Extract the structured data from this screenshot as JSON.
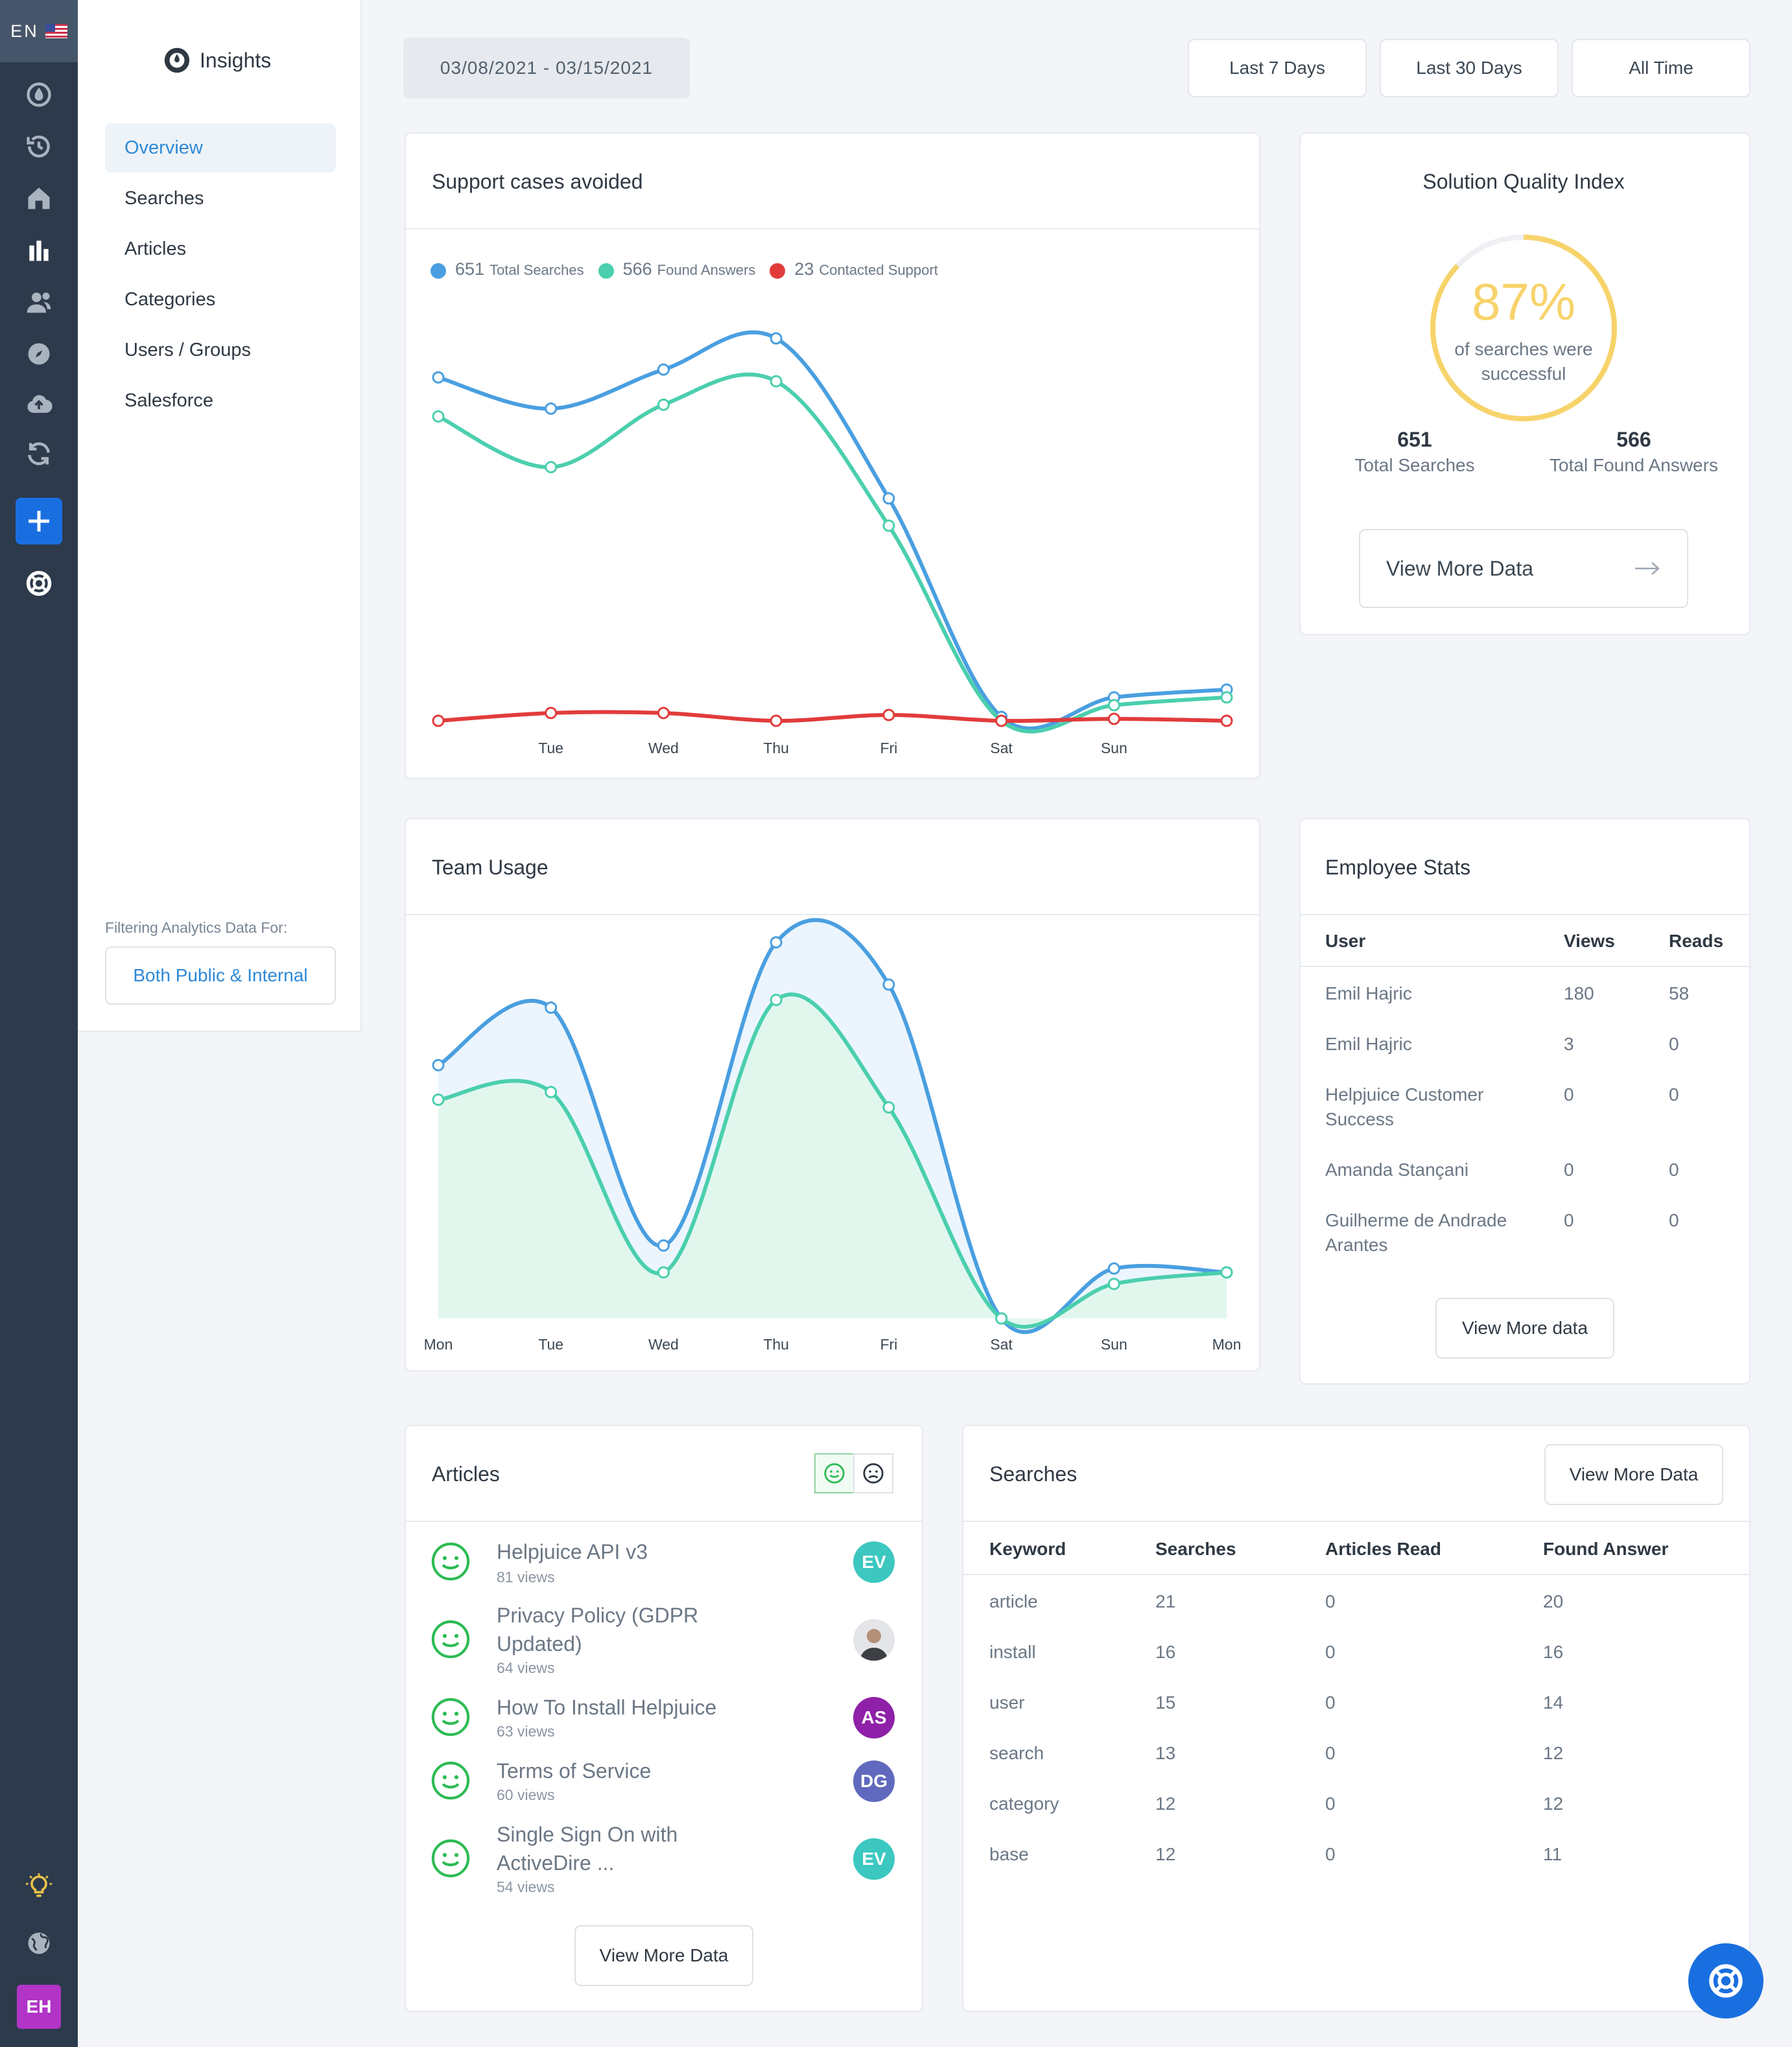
{
  "lang": "EN",
  "brand": {
    "name": "Insights"
  },
  "nav": {
    "items": [
      "Overview",
      "Searches",
      "Articles",
      "Categories",
      "Users / Groups",
      "Salesforce"
    ],
    "filter_label": "Filtering Analytics Data For:",
    "filter_value": "Both Public & Internal"
  },
  "rail_icons": [
    "droplet-icon",
    "history-icon",
    "home-icon",
    "bar-chart-icon",
    "users-icon",
    "compass-icon",
    "cloud-upload-icon",
    "sync-icon",
    "plus-icon",
    "lifebuoy-icon",
    "lightbulb-icon",
    "globe-icon"
  ],
  "user_initials": "EH",
  "toolbar": {
    "date_range": "03/08/2021 - 03/15/2021",
    "ranges": [
      "Last 7 Days",
      "Last 30 Days",
      "All Time"
    ]
  },
  "support_cases": {
    "title": "Support cases avoided",
    "legend": [
      {
        "num": "651",
        "label": "Total Searches",
        "color": "#4a9fe0"
      },
      {
        "num": "566",
        "label": "Found Answers",
        "color": "#4bcfae"
      },
      {
        "num": "23",
        "label": "Contacted Support",
        "color": "#e23b3b"
      }
    ]
  },
  "sqi": {
    "title": "Solution Quality Index",
    "percent_label": "87%",
    "percent": 87,
    "subtitle": "of searches were successful",
    "stats": [
      {
        "num": "651",
        "label": "Total Searches"
      },
      {
        "num": "566",
        "label": "Total Found Answers"
      }
    ],
    "button": "View More Data"
  },
  "team_usage": {
    "title": "Team Usage"
  },
  "chart_data": [
    {
      "type": "line",
      "title": "Support cases avoided",
      "x": [
        "",
        "Tue",
        "Wed",
        "Thu",
        "Fri",
        "Sat",
        "Sun",
        ""
      ],
      "ylim": [
        0,
        100
      ],
      "series": [
        {
          "name": "Total Searches",
          "color": "#4a9fe0",
          "values": [
            88,
            80,
            90,
            98,
            57,
            1,
            6,
            8
          ]
        },
        {
          "name": "Found Answers",
          "color": "#4bcfae",
          "values": [
            78,
            65,
            81,
            87,
            50,
            0,
            4,
            6
          ]
        },
        {
          "name": "Contacted Support",
          "color": "#e23b3b",
          "values": [
            0,
            2,
            2,
            0,
            1.5,
            0,
            0.5,
            0
          ]
        }
      ]
    },
    {
      "type": "area",
      "title": "Team Usage",
      "x": [
        "Mon",
        "Tue",
        "Wed",
        "Thu",
        "Fri",
        "Sat",
        "Sun",
        "Mon"
      ],
      "ylim": [
        0,
        100
      ],
      "series": [
        {
          "color": "#4a9fe0",
          "values": [
            66,
            81,
            19,
            98,
            87,
            0,
            13,
            12
          ]
        },
        {
          "color": "#4bcfae",
          "values": [
            57,
            59,
            12,
            83,
            55,
            0,
            9,
            12
          ]
        }
      ]
    }
  ],
  "employee_stats": {
    "title": "Employee Stats",
    "columns": [
      "User",
      "Views",
      "Reads"
    ],
    "rows": [
      [
        "Emil Hajric",
        "180",
        "58"
      ],
      [
        "Emil Hajric",
        "3",
        "0"
      ],
      [
        "Helpjuice Customer Success",
        "0",
        "0"
      ],
      [
        "Amanda Stançani",
        "0",
        "0"
      ],
      [
        "Guilherme de Andrade Arantes",
        "0",
        "0"
      ]
    ],
    "button": "View More data"
  },
  "articles": {
    "title": "Articles",
    "items": [
      {
        "title": "Helpjuice API v3",
        "views": "81 views",
        "badge": "EV",
        "badge_color": "#3cc7c0"
      },
      {
        "title": "Privacy Policy (GDPR Updated)",
        "views": "64 views",
        "badge": "",
        "badge_color": "#c9cdd2"
      },
      {
        "title": "How To Install Helpjuice",
        "views": "63 views",
        "badge": "AS",
        "badge_color": "#8e21a8"
      },
      {
        "title": "Terms of Service",
        "views": "60 views",
        "badge": "DG",
        "badge_color": "#6069bd"
      },
      {
        "title": "Single Sign On with ActiveDire ...",
        "views": "54 views",
        "badge": "EV",
        "badge_color": "#3cc7c0"
      }
    ],
    "button": "View More Data"
  },
  "searches": {
    "title": "Searches",
    "button": "View More Data",
    "columns": [
      "Keyword",
      "Searches",
      "Articles Read",
      "Found Answer"
    ],
    "rows": [
      [
        "article",
        "21",
        "0",
        "20"
      ],
      [
        "install",
        "16",
        "0",
        "16"
      ],
      [
        "user",
        "15",
        "0",
        "14"
      ],
      [
        "search",
        "13",
        "0",
        "12"
      ],
      [
        "category",
        "12",
        "0",
        "12"
      ],
      [
        "base",
        "12",
        "0",
        "11"
      ]
    ]
  }
}
